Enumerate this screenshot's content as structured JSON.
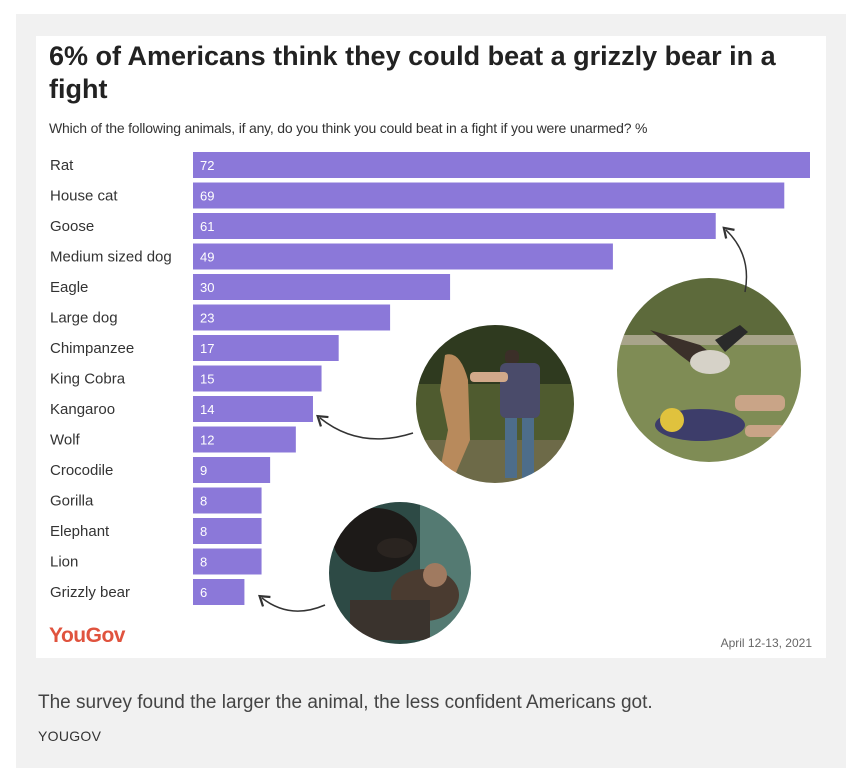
{
  "chart_data": {
    "type": "bar",
    "orientation": "horizontal",
    "title": "6% of Americans think they could beat a grizzly bear in a fight",
    "subtitle": "Which of the following animals, if any, do you think you could beat in a fight if you were unarmed? %",
    "categories": [
      "Rat",
      "House cat",
      "Goose",
      "Medium sized dog",
      "Eagle",
      "Large dog",
      "Chimpanzee",
      "King Cobra",
      "Kangaroo",
      "Wolf",
      "Crocodile",
      "Gorilla",
      "Elephant",
      "Lion",
      "Grizzly bear"
    ],
    "values": [
      72,
      69,
      61,
      49,
      30,
      23,
      17,
      15,
      14,
      12,
      9,
      8,
      8,
      8,
      6
    ],
    "xlim": [
      0,
      72
    ],
    "bar_color": "#8b78d9",
    "grid": false
  },
  "branding": {
    "logo": "YouGov",
    "date": "April 12-13, 2021"
  },
  "caption": "The survey found the larger the animal, the less confident Americans got.",
  "credit": "YOUGOV",
  "colors": {
    "logo": "#e0533e",
    "frame": "#f1f1f1"
  },
  "photos": [
    "goose-photo",
    "kangaroo-photo",
    "bear-photo"
  ]
}
